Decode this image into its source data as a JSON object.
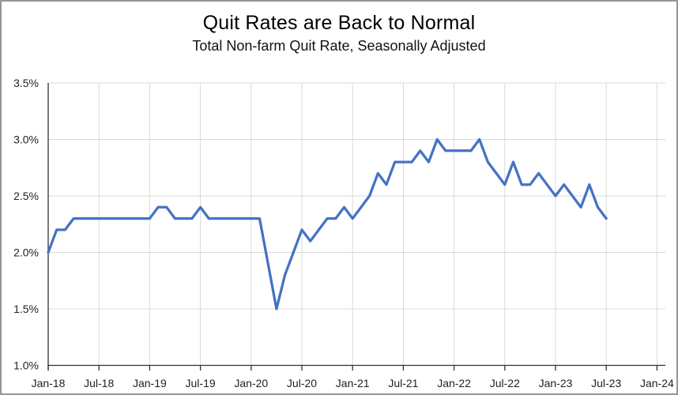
{
  "chart_data": {
    "type": "line",
    "title": "Quit Rates are Back to Normal",
    "subtitle": "Total Non-farm Quit Rate, Seasonally Adjusted",
    "unit": "%",
    "frequency": "monthly",
    "x_range": [
      "Jan-18",
      "Jul-23"
    ],
    "x_axis_range": [
      "Jan-18",
      "Jan-24"
    ],
    "ylim": [
      1.0,
      3.5
    ],
    "grid": true,
    "legend": false,
    "x_tick_labels": [
      "Jan-18",
      "Jul-18",
      "Jan-19",
      "Jul-19",
      "Jan-20",
      "Jul-20",
      "Jan-21",
      "Jul-21",
      "Jan-22",
      "Jul-22",
      "Jan-23",
      "Jul-23",
      "Jan-24"
    ],
    "y_ticks": [
      3.5,
      3.0,
      2.5,
      2.0,
      1.5,
      1.0
    ],
    "y_tick_labels": [
      "3.5%",
      "3.0%",
      "2.5%",
      "2.0%",
      "1.5%",
      "1.0%"
    ],
    "x_months": [
      "Jan-18",
      "Feb-18",
      "Mar-18",
      "Apr-18",
      "May-18",
      "Jun-18",
      "Jul-18",
      "Aug-18",
      "Sep-18",
      "Oct-18",
      "Nov-18",
      "Dec-18",
      "Jan-19",
      "Feb-19",
      "Mar-19",
      "Apr-19",
      "May-19",
      "Jun-19",
      "Jul-19",
      "Aug-19",
      "Sep-19",
      "Oct-19",
      "Nov-19",
      "Dec-19",
      "Jan-20",
      "Feb-20",
      "Mar-20",
      "Apr-20",
      "May-20",
      "Jun-20",
      "Jul-20",
      "Aug-20",
      "Sep-20",
      "Oct-20",
      "Nov-20",
      "Dec-20",
      "Jan-21",
      "Feb-21",
      "Mar-21",
      "Apr-21",
      "May-21",
      "Jun-21",
      "Jul-21",
      "Aug-21",
      "Sep-21",
      "Oct-21",
      "Nov-21",
      "Dec-21",
      "Jan-22",
      "Feb-22",
      "Mar-22",
      "Apr-22",
      "May-22",
      "Jun-22",
      "Jul-22",
      "Aug-22",
      "Sep-22",
      "Oct-22",
      "Nov-22",
      "Dec-22",
      "Jan-23",
      "Feb-23",
      "Mar-23",
      "Apr-23",
      "May-23",
      "Jun-23",
      "Jul-23"
    ],
    "values": [
      2.0,
      2.2,
      2.2,
      2.3,
      2.3,
      2.3,
      2.3,
      2.3,
      2.3,
      2.3,
      2.3,
      2.3,
      2.3,
      2.4,
      2.4,
      2.3,
      2.3,
      2.3,
      2.4,
      2.3,
      2.3,
      2.3,
      2.3,
      2.3,
      2.3,
      2.3,
      1.9,
      1.5,
      1.8,
      2.0,
      2.2,
      2.1,
      2.2,
      2.3,
      2.3,
      2.4,
      2.3,
      2.4,
      2.5,
      2.7,
      2.6,
      2.8,
      2.8,
      2.8,
      2.9,
      2.8,
      3.0,
      2.9,
      2.9,
      2.9,
      2.9,
      3.0,
      2.8,
      2.7,
      2.6,
      2.8,
      2.6,
      2.6,
      2.7,
      2.6,
      2.5,
      2.6,
      2.5,
      2.4,
      2.6,
      2.4,
      2.3
    ],
    "colors": {
      "line": "#4472C4",
      "gridline": "#D9D9D9",
      "axis": "#333333",
      "tick_text": "#1f1f1f",
      "title_text": "#000000",
      "frame_border": "#969696"
    }
  }
}
